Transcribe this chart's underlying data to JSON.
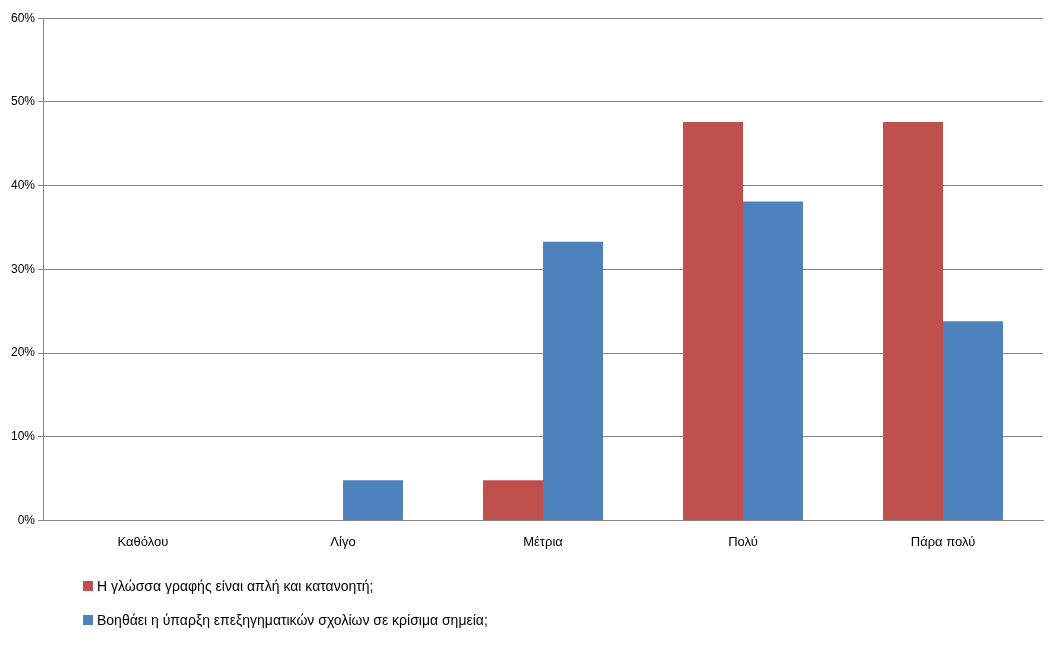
{
  "chart_data": {
    "type": "bar",
    "categories": [
      "Καθόλου",
      "Λίγο",
      "Μέτρια",
      "Πολύ",
      "Πάρα πολύ"
    ],
    "series": [
      {
        "name": "Η γλώσσα γραφής είναι απλή και κατανοητή;",
        "color": "#c0504d",
        "values": [
          0,
          0,
          4.8,
          47.6,
          47.6
        ]
      },
      {
        "name": "Βοηθάει η ύπαρξη επεξηγηματικών σχολίων σε κρίσιμα σημεία;",
        "color": "#4f81bd",
        "values": [
          0,
          4.8,
          33.3,
          38.1,
          23.8
        ]
      }
    ],
    "ylim": [
      0,
      60
    ],
    "yticks": [
      {
        "value": 0,
        "label": "0%"
      },
      {
        "value": 10,
        "label": "10%"
      },
      {
        "value": 20,
        "label": "20%"
      },
      {
        "value": 30,
        "label": "30%"
      },
      {
        "value": 40,
        "label": "40%"
      },
      {
        "value": 50,
        "label": "50%"
      },
      {
        "value": 60,
        "label": "60%"
      }
    ],
    "grid": "y",
    "legend": "bottom"
  }
}
